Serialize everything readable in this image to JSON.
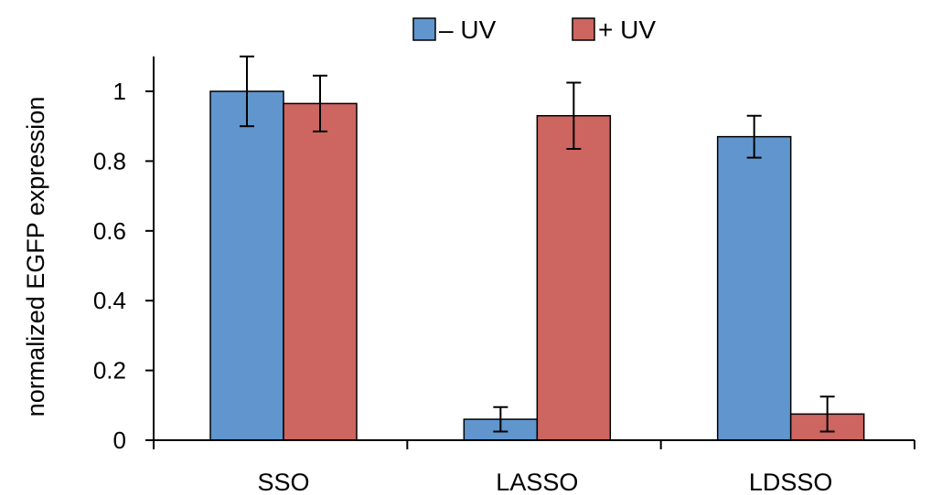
{
  "chart_data": {
    "type": "bar",
    "title": "",
    "xlabel": "",
    "ylabel": "normalized EGFP expression",
    "categories": [
      "SSO",
      "LASSO",
      "LDSSO"
    ],
    "series": [
      {
        "name": "– UV",
        "color": "#6096cd",
        "values": [
          1.0,
          0.06,
          0.87
        ],
        "errors": [
          0.1,
          0.035,
          0.06
        ]
      },
      {
        "name": "+ UV",
        "color": "#cd6560",
        "values": [
          0.965,
          0.93,
          0.075
        ],
        "errors": [
          0.08,
          0.095,
          0.05
        ]
      }
    ],
    "ylim": [
      0,
      1.1
    ],
    "yticks": [
      0,
      0.2,
      0.4,
      0.6,
      0.8,
      1
    ],
    "ytick_labels": [
      "0",
      "0.2",
      "0.4",
      "0.6",
      "0.8",
      "1"
    ],
    "grid": false,
    "legend_position": "top-center"
  }
}
